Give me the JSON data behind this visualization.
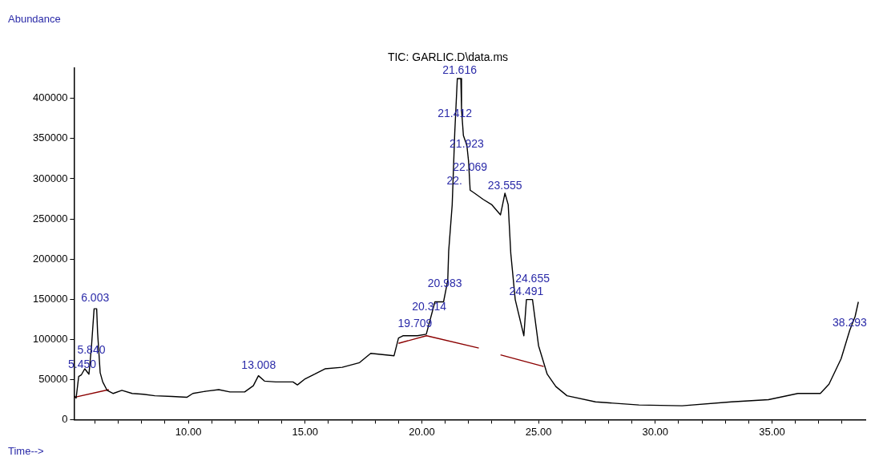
{
  "chart_data": {
    "type": "line",
    "title": "TIC: GARLIC.D\\data.ms",
    "xlabel": "Time-->",
    "ylabel": "Abundance",
    "xlim": [
      5.1,
      39
    ],
    "ylim": [
      0,
      438000
    ],
    "xticks": [
      {
        "value": 6,
        "label": null
      },
      {
        "value": 7,
        "label": null
      },
      {
        "value": 8,
        "label": null
      },
      {
        "value": 9,
        "label": null
      },
      {
        "value": 10,
        "label": "10.00"
      },
      {
        "value": 11,
        "label": null
      },
      {
        "value": 12,
        "label": null
      },
      {
        "value": 13,
        "label": null
      },
      {
        "value": 14,
        "label": null
      },
      {
        "value": 15,
        "label": "15.00"
      },
      {
        "value": 16,
        "label": null
      },
      {
        "value": 17,
        "label": null
      },
      {
        "value": 18,
        "label": null
      },
      {
        "value": 19,
        "label": null
      },
      {
        "value": 20,
        "label": "20.00"
      },
      {
        "value": 21,
        "label": null
      },
      {
        "value": 22,
        "label": null
      },
      {
        "value": 23,
        "label": null
      },
      {
        "value": 24,
        "label": null
      },
      {
        "value": 25,
        "label": "25.00"
      },
      {
        "value": 26,
        "label": null
      },
      {
        "value": 27,
        "label": null
      },
      {
        "value": 28,
        "label": null
      },
      {
        "value": 29,
        "label": null
      },
      {
        "value": 30,
        "label": "30.00"
      },
      {
        "value": 31,
        "label": null
      },
      {
        "value": 32,
        "label": null
      },
      {
        "value": 33,
        "label": null
      },
      {
        "value": 34,
        "label": null
      },
      {
        "value": 35,
        "label": "35.00"
      },
      {
        "value": 36,
        "label": null
      },
      {
        "value": 37,
        "label": null
      },
      {
        "value": 38,
        "label": null
      }
    ],
    "yticks": [
      0,
      50000,
      100000,
      150000,
      200000,
      250000,
      300000,
      350000,
      400000
    ],
    "grid": false,
    "legend": false,
    "marker": "none",
    "series": [
      {
        "color": "#000000",
        "x": [
          5.1,
          5.19,
          5.3,
          5.41,
          5.56,
          5.74,
          5.85,
          5.96,
          6.07,
          6.11,
          6.22,
          6.33,
          6.52,
          6.78,
          7.15,
          7.59,
          8.07,
          8.56,
          9.3,
          9.93,
          10.19,
          10.78,
          11.3,
          11.78,
          12.41,
          12.78,
          13.0,
          13.26,
          13.74,
          14.48,
          14.67,
          15.0,
          15.41,
          15.85,
          16.59,
          17.33,
          17.81,
          18.81,
          19.0,
          19.19,
          19.81,
          20.19,
          20.56,
          20.93,
          21.11,
          21.15,
          21.3,
          21.41,
          21.52,
          21.67,
          21.7,
          21.78,
          21.93,
          22.0,
          22.07,
          22.26,
          22.63,
          23.0,
          23.37,
          23.56,
          23.7,
          23.81,
          24.0,
          24.37,
          24.48,
          24.74,
          25.0,
          25.37,
          25.74,
          26.22,
          27.44,
          29.3,
          31.15,
          33.26,
          34.85,
          36.11,
          37.07,
          37.44,
          37.96,
          38.33,
          38.56,
          38.7
        ],
        "values": [
          29700,
          26900,
          53700,
          55600,
          63300,
          56600,
          92000,
          138100,
          138100,
          108400,
          58500,
          47000,
          36400,
          32600,
          36400,
          32600,
          31600,
          29700,
          28800,
          27800,
          32600,
          35500,
          37400,
          34500,
          34500,
          42200,
          54700,
          48000,
          47000,
          47000,
          43200,
          50800,
          56600,
          63300,
          65200,
          71000,
          82500,
          79600,
          101700,
          104500,
          104500,
          106400,
          146700,
          146700,
          173600,
          210000,
          267600,
          357700,
          424800,
          424800,
          386500,
          353900,
          341400,
          322200,
          285800,
          282000,
          274300,
          267600,
          255100,
          282000,
          267600,
          207100,
          149600,
          104500,
          149600,
          149600,
          92100,
          56600,
          41200,
          29700,
          22100,
          18200,
          17300,
          22100,
          24900,
          32600,
          32600,
          44100,
          75800,
          111200,
          128500,
          146700
        ]
      },
      {
        "color": "#8b0000",
        "x": [
          5.11,
          6.59,
          6.6,
          19.0,
          20.2,
          22.44,
          22.45,
          23.37,
          25.22
        ],
        "values": [
          27800,
          37400,
          null,
          95000,
          104500,
          89200,
          null,
          80600,
          66200
        ]
      }
    ],
    "annotations": [
      {
        "text": "6.003",
        "x": 6.003,
        "y": 142000
      },
      {
        "text": "5.840",
        "x": 5.84,
        "y": 77000
      },
      {
        "text": "5.450",
        "x": 5.45,
        "y": 59000
      },
      {
        "text": "13.008",
        "x": 13.008,
        "y": 58000
      },
      {
        "text": "19.709",
        "x": 19.709,
        "y": 110000
      },
      {
        "text": "20.314",
        "x": 20.314,
        "y": 131000
      },
      {
        "text": "20.983",
        "x": 20.983,
        "y": 160000
      },
      {
        "text": "21.412",
        "x": 21.412,
        "y": 372000
      },
      {
        "text": "21.616",
        "x": 21.616,
        "y": 426000
      },
      {
        "text": "21.923",
        "x": 21.923,
        "y": 334000
      },
      {
        "text": "22.069",
        "x": 22.069,
        "y": 305000
      },
      {
        "text": "22.",
        "x": 21.4,
        "y": 288000
      },
      {
        "text": "23.555",
        "x": 23.56,
        "y": 282000
      },
      {
        "text": "24.491",
        "x": 24.48,
        "y": 149600
      },
      {
        "text": "24.655",
        "x": 24.74,
        "y": 149600
      },
      {
        "text": "38.293",
        "x": 38.33,
        "y": 111200
      }
    ]
  }
}
